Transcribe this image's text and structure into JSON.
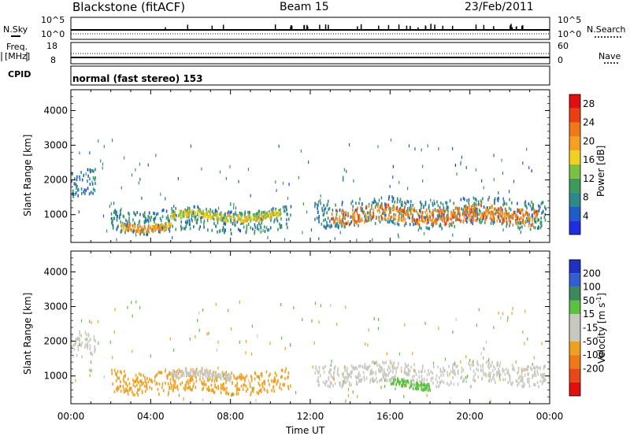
{
  "header": {
    "title": "Blackstone (fitACF)",
    "beam": "Beam 15",
    "date": "23/Feb/2011"
  },
  "top_panels": {
    "nsky_label": "N.Sky",
    "nsky_ticks": [
      "10^5",
      "10^0"
    ],
    "nsearch_label": "N.Search",
    "nsearch_ticks": [
      "10^5",
      "10^0"
    ],
    "freq_label_1": "Freq.",
    "freq_label_2": "[MHz]",
    "freq_ticks": [
      "18",
      "8"
    ],
    "nave_label": "Nave",
    "nave_ticks": [
      "60",
      "0"
    ],
    "cpid_label": "CPID",
    "cpid_value": "normal (fast stereo) 153"
  },
  "chart_data": [
    {
      "type": "heatmap",
      "title": "",
      "xlabel": "Time UT",
      "ylabel": "Slant Range [km]",
      "x_ticks": [
        "00:00",
        "04:00",
        "08:00",
        "12:00",
        "16:00",
        "20:00",
        "00:00"
      ],
      "y_ticks": [
        "1000",
        "2000",
        "3000",
        "4000"
      ],
      "xlim_hours": [
        0,
        24
      ],
      "ylim_km": [
        200,
        4600
      ],
      "colorbar": {
        "label": "Power [dB]",
        "ticks": [
          "4",
          "8",
          "12",
          "16",
          "20",
          "24",
          "28"
        ],
        "colors": [
          "#1f2fe0",
          "#1e5cc8",
          "#2e8a8a",
          "#3c9a5a",
          "#7cc040",
          "#f0d020",
          "#f5a020",
          "#f07818",
          "#e84010",
          "#e01010"
        ]
      },
      "bands": [
        {
          "t": [
            0.0,
            1.2
          ],
          "range_km": [
            1550,
            2300
          ],
          "power_db": 8
        },
        {
          "t": [
            2.0,
            11.0
          ],
          "range_km": [
            550,
            1200
          ],
          "power_db": 10
        },
        {
          "t": [
            2.5,
            5.0
          ],
          "range_km": [
            600,
            800
          ],
          "power_db": 22
        },
        {
          "t": [
            5.0,
            10.5
          ],
          "range_km": [
            900,
            1100
          ],
          "power_db": 18
        },
        {
          "t": [
            12.2,
            23.8
          ],
          "range_km": [
            700,
            1500
          ],
          "power_db": 10
        },
        {
          "t": [
            13.0,
            23.5
          ],
          "range_km": [
            800,
            1250
          ],
          "power_db": 24
        }
      ]
    },
    {
      "type": "heatmap",
      "title": "",
      "xlabel": "Time UT",
      "ylabel": "Slant Range [km]",
      "x_ticks": [
        "00:00",
        "04:00",
        "08:00",
        "12:00",
        "16:00",
        "20:00",
        "00:00"
      ],
      "y_ticks": [
        "1000",
        "2000",
        "3000",
        "4000"
      ],
      "xlim_hours": [
        0,
        24
      ],
      "ylim_km": [
        200,
        4600
      ],
      "colorbar": {
        "label": "Velocity [m s^-1]",
        "ticks": [
          "200",
          "100",
          "50",
          "15",
          "-15",
          "-50",
          "-100",
          "-200"
        ],
        "colors": [
          "#2030c0",
          "#3060d0",
          "#3c8a5a",
          "#5cc040",
          "#c8c8c0",
          "#c8c8c0",
          "#f0a020",
          "#f07818",
          "#e84818",
          "#e01010"
        ]
      },
      "bands": [
        {
          "t": [
            0.0,
            1.2
          ],
          "range_km": [
            1550,
            2300
          ],
          "velocity": 0
        },
        {
          "t": [
            2.0,
            11.0
          ],
          "range_km": [
            550,
            1200
          ],
          "velocity": -40
        },
        {
          "t": [
            5.0,
            8.0
          ],
          "range_km": [
            950,
            1150
          ],
          "velocity": 0
        },
        {
          "t": [
            12.2,
            23.8
          ],
          "range_km": [
            800,
            1400
          ],
          "velocity": 0
        },
        {
          "t": [
            16.0,
            18.0
          ],
          "range_km": [
            700,
            900
          ],
          "velocity": 40
        }
      ]
    }
  ]
}
